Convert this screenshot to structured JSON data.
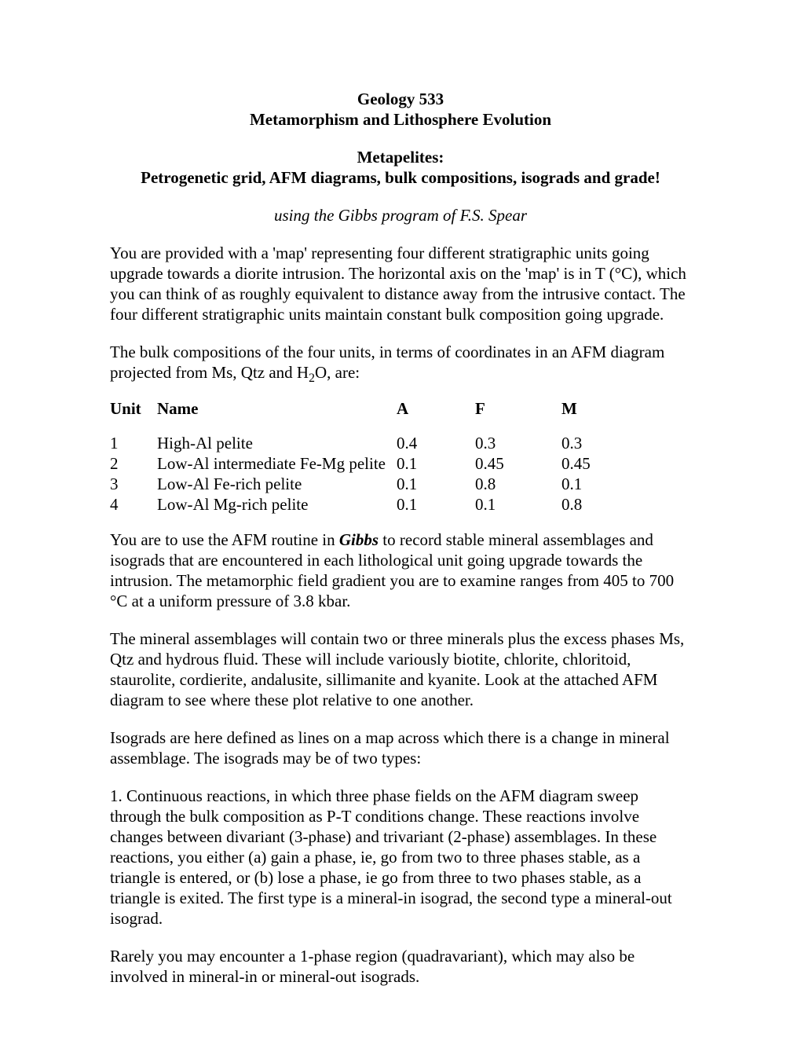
{
  "header": {
    "course": "Geology 533",
    "course_subtitle": "Metamorphism and Lithosphere Evolution",
    "topic": "Metapelites:",
    "topic_sub": "Petrogenetic grid, AFM diagrams, bulk compositions, isograds and grade!",
    "attribution": "using the Gibbs program of F.S. Spear"
  },
  "para1a": "You are provided with a 'map' representing four different stratigraphic units going upgrade towards a diorite intrusion. The horizontal axis on the 'map' is in T (°C), which you can think of as roughly equivalent to distance away from the intrusive contact. The four different stratigraphic units maintain constant bulk composition going upgrade.",
  "para2_pre": "The bulk compositions of the four units, in terms of coordinates in an AFM diagram projected from Ms, Qtz and H",
  "para2_sub": "2",
  "para2_post": "O, are:",
  "table": {
    "headers": {
      "unit": "Unit",
      "name": "Name",
      "a": "A",
      "f": "F",
      "m": "M"
    },
    "rows": [
      {
        "unit": "1",
        "name": "High-Al pelite",
        "a": "0.4",
        "f": "0.3",
        "m": "0.3"
      },
      {
        "unit": "2",
        "name": "Low-Al intermediate Fe-Mg pelite",
        "a": "0.1",
        "f": "0.45",
        "m": "0.45"
      },
      {
        "unit": "3",
        "name": "Low-Al Fe-rich pelite",
        "a": "0.1",
        "f": "0.8",
        "m": "0.1"
      },
      {
        "unit": "4",
        "name": "Low-Al Mg-rich pelite",
        "a": "0.1",
        "f": "0.1",
        "m": "0.8"
      }
    ]
  },
  "para3_pre": "You are to use the AFM routine in ",
  "para3_em": "Gibbs",
  "para3_post": " to record stable mineral assemblages and isograds that are encountered in each lithological unit going upgrade towards the intrusion. The metamorphic field gradient you are to examine ranges from 405 to 700 °C at a uniform pressure of 3.8 kbar.",
  "para4": "The mineral assemblages will contain two or three minerals plus the excess phases Ms, Qtz and hydrous fluid. These will include variously biotite, chlorite, chloritoid, staurolite, cordierite, andalusite, sillimanite and kyanite. Look at the attached AFM diagram to see where these plot relative to one another.",
  "para5": "Isograds are here defined as lines on a map across which there is a change in mineral assemblage. The isograds may be of two types:",
  "para6": "1. Continuous reactions, in which three phase fields on the AFM diagram sweep through the bulk composition as P-T conditions change. These reactions involve changes between divariant (3-phase) and trivariant (2-phase) assemblages. In these reactions, you either (a) gain a phase, ie, go from two to three phases stable, as a triangle is entered, or (b) lose a phase, ie go from three to two phases stable, as a triangle is exited. The first type is a mineral-in isograd, the second type a mineral-out isograd.",
  "para7": "Rarely you may encounter a 1-phase region (quadravariant), which may also be involved in mineral-in or mineral-out isograds."
}
